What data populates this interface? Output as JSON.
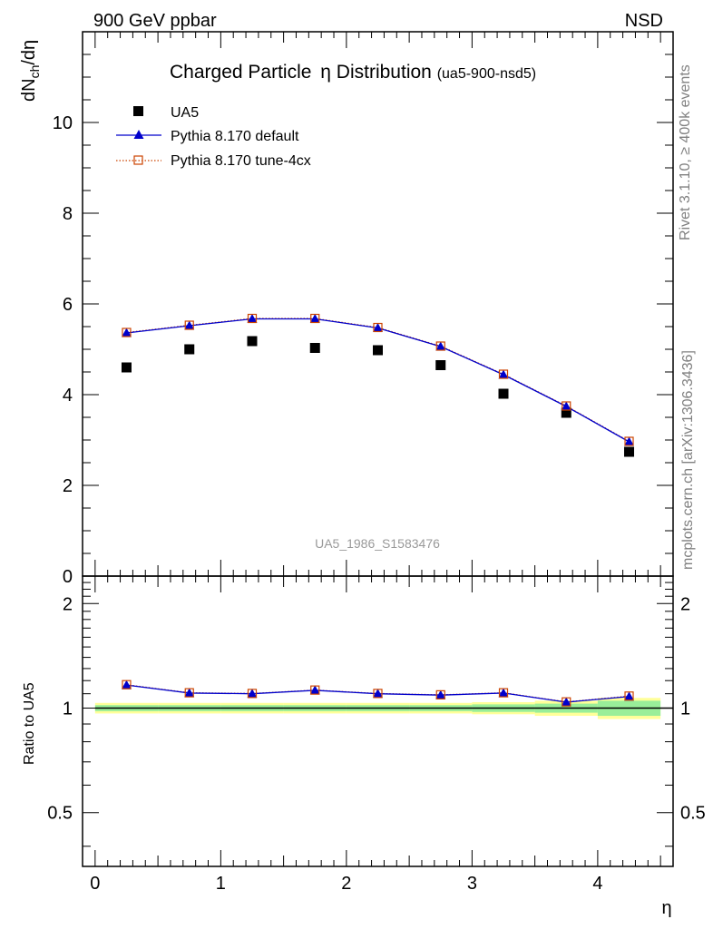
{
  "header": {
    "left": "900 GeV ppbar",
    "right": "NSD"
  },
  "side_labels": {
    "rivet": "Rivet 3.1.10, ≥ 400k events",
    "mcplots": "mcplots.cern.ch [arXiv:1306.3436]"
  },
  "colors": {
    "data": "#000000",
    "default": "#0000cc",
    "tune": "#cc4400",
    "band_inner": "#99ee99",
    "band_outer": "#ffff99"
  },
  "chart_data": [
    {
      "type": "scatter",
      "name": "main",
      "title_main": "Charged Particle",
      "title_symbol": "η",
      "title_mid": " Distribution",
      "title_tag": "(ua5-900-nsd5)",
      "ylabel": "dNch/dη",
      "analysis_label": "UA5_1986_S1583476",
      "xlim": [
        -0.1,
        4.6
      ],
      "ylim": [
        0,
        12
      ],
      "yticks": [
        0,
        2,
        4,
        6,
        8,
        10
      ],
      "ytick_labels": [
        "0",
        "2",
        "4",
        "6",
        "8",
        "10"
      ],
      "legend": [
        "UA5",
        "Pythia 8.170 default",
        "Pythia 8.170 tune-4cx"
      ],
      "x": [
        0.25,
        0.75,
        1.25,
        1.75,
        2.25,
        2.75,
        3.25,
        3.75,
        4.25
      ],
      "series": [
        {
          "name": "UA5",
          "values": [
            4.6,
            5.0,
            5.18,
            5.03,
            4.98,
            4.65,
            4.02,
            3.6,
            2.74
          ]
        },
        {
          "name": "Pythia 8.170 default",
          "values": [
            5.36,
            5.52,
            5.67,
            5.67,
            5.47,
            5.06,
            4.44,
            3.74,
            2.96
          ]
        },
        {
          "name": "Pythia 8.170 tune-4cx",
          "values": [
            5.37,
            5.53,
            5.68,
            5.68,
            5.48,
            5.07,
            4.45,
            3.75,
            2.97
          ]
        }
      ]
    },
    {
      "type": "line",
      "name": "ratio",
      "ylabel": "Ratio to UA5",
      "xlabel": "η",
      "xlim": [
        -0.1,
        4.6
      ],
      "ylim": [
        0.35,
        2.4
      ],
      "xticks": [
        0,
        1,
        2,
        3,
        4
      ],
      "xtick_labels": [
        "0",
        "1",
        "2",
        "3",
        "4"
      ],
      "yticks": [
        0.5,
        1,
        2
      ],
      "ytick_labels": [
        "0.5",
        "1",
        "2"
      ],
      "x": [
        0.25,
        0.75,
        1.25,
        1.75,
        2.25,
        2.75,
        3.25,
        3.75,
        4.25
      ],
      "bin_edges": [
        0,
        0.5,
        1,
        1.5,
        2,
        2.5,
        3,
        3.5,
        4,
        4.5
      ],
      "band_inner": [
        0.02,
        0.02,
        0.02,
        0.02,
        0.02,
        0.02,
        0.025,
        0.03,
        0.05
      ],
      "band_outer": [
        0.035,
        0.035,
        0.035,
        0.035,
        0.035,
        0.035,
        0.04,
        0.05,
        0.07
      ],
      "series": [
        {
          "name": "Pythia 8.170 default",
          "values": [
            1.165,
            1.105,
            1.1,
            1.125,
            1.1,
            1.09,
            1.105,
            1.04,
            1.08
          ]
        },
        {
          "name": "Pythia 8.170 tune-4cx",
          "values": [
            1.168,
            1.107,
            1.102,
            1.127,
            1.102,
            1.092,
            1.107,
            1.042,
            1.083
          ]
        }
      ]
    }
  ]
}
